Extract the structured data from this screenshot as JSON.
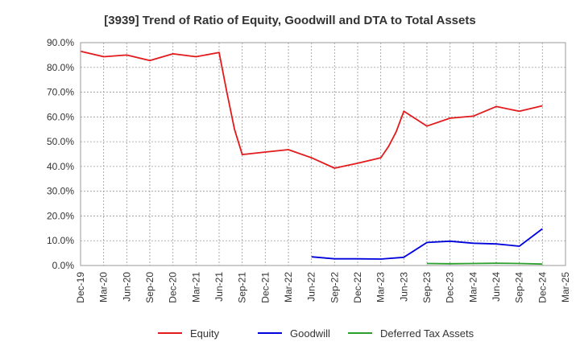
{
  "chart_data": {
    "type": "line",
    "title": "[3939]  Trend of Ratio of Equity, Goodwill and DTA to Total Assets",
    "xlabel": "",
    "ylabel": "",
    "ylim": [
      0,
      90
    ],
    "y_ticks": [
      "0.0%",
      "10.0%",
      "20.0%",
      "30.0%",
      "40.0%",
      "50.0%",
      "60.0%",
      "70.0%",
      "80.0%",
      "90.0%"
    ],
    "x_ticks": [
      "Dec-19",
      "Mar-20",
      "Jun-20",
      "Sep-20",
      "Dec-20",
      "Mar-21",
      "Jun-21",
      "Sep-21",
      "Dec-21",
      "Mar-22",
      "Jun-22",
      "Sep-22",
      "Dec-22",
      "Mar-23",
      "Jun-23",
      "Sep-23",
      "Dec-23",
      "Mar-24",
      "Jun-24",
      "Sep-24",
      "Dec-24",
      "Mar-25"
    ],
    "grid": true,
    "legend_position": "bottom",
    "series": [
      {
        "name": "Equity",
        "color": "#e31a1c",
        "points": [
          [
            "Dec-19",
            86.5
          ],
          [
            "Mar-20",
            84.3
          ],
          [
            "Jun-20",
            85.0
          ],
          [
            "Sep-20",
            82.8
          ],
          [
            "Dec-20",
            85.5
          ],
          [
            "Mar-21",
            84.3
          ],
          [
            "Jun-21",
            86.0
          ],
          [
            "Jul-21",
            70.0
          ],
          [
            "Aug-21",
            55.0
          ],
          [
            "Sep-21",
            44.8
          ],
          [
            "Dec-21",
            45.8
          ],
          [
            "Mar-22",
            46.8
          ],
          [
            "Jun-22",
            43.5
          ],
          [
            "Sep-22",
            39.3
          ],
          [
            "Dec-22",
            41.3
          ],
          [
            "Mar-23",
            43.5
          ],
          [
            "Apr-23",
            48.0
          ],
          [
            "May-23",
            54.0
          ],
          [
            "Jun-23",
            62.3
          ],
          [
            "Sep-23",
            56.3
          ],
          [
            "Dec-23",
            59.5
          ],
          [
            "Mar-24",
            60.3
          ],
          [
            "Jun-24",
            64.2
          ],
          [
            "Sep-24",
            62.3
          ],
          [
            "Dec-24",
            64.5
          ]
        ]
      },
      {
        "name": "Goodwill",
        "color": "#0000dd",
        "points": [
          [
            "Jun-22",
            3.5
          ],
          [
            "Sep-22",
            2.7
          ],
          [
            "Dec-22",
            2.7
          ],
          [
            "Mar-23",
            2.6
          ],
          [
            "Jun-23",
            3.3
          ],
          [
            "Sep-23",
            9.3
          ],
          [
            "Dec-23",
            9.8
          ],
          [
            "Mar-24",
            9.0
          ],
          [
            "Jun-24",
            8.7
          ],
          [
            "Sep-24",
            7.8
          ],
          [
            "Dec-24",
            14.8
          ]
        ]
      },
      {
        "name": "Deferred Tax Assets",
        "color": "#2ca02c",
        "points": [
          [
            "Sep-23",
            0.8
          ],
          [
            "Dec-23",
            0.7
          ],
          [
            "Mar-24",
            0.8
          ],
          [
            "Jun-24",
            0.9
          ],
          [
            "Sep-24",
            0.8
          ],
          [
            "Dec-24",
            0.6
          ]
        ]
      }
    ]
  }
}
